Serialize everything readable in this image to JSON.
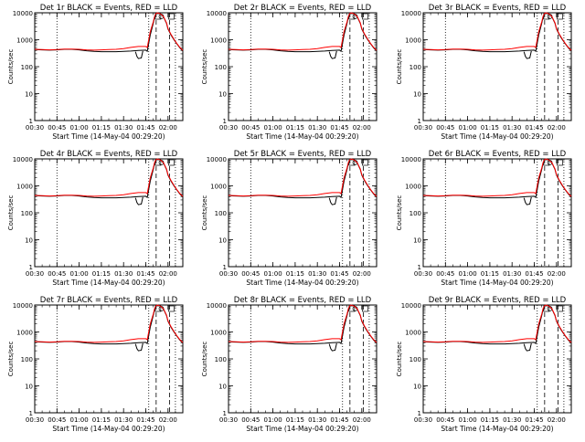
{
  "chart_data": [
    {
      "type": "line",
      "title": "Det 1r BLACK = Events, RED = LLD",
      "detector": "1r"
    },
    {
      "type": "line",
      "title": "Det 2r BLACK = Events, RED = LLD",
      "detector": "2r"
    },
    {
      "type": "line",
      "title": "Det 3r BLACK = Events, RED = LLD",
      "detector": "3r"
    },
    {
      "type": "line",
      "title": "Det 4r BLACK = Events, RED = LLD",
      "detector": "4r"
    },
    {
      "type": "line",
      "title": "Det 5r BLACK = Events, RED = LLD",
      "detector": "5r"
    },
    {
      "type": "line",
      "title": "Det 6r BLACK = Events, RED = LLD",
      "detector": "6r"
    },
    {
      "type": "line",
      "title": "Det 7r BLACK = Events, RED = LLD",
      "detector": "7r"
    },
    {
      "type": "line",
      "title": "Det 8r BLACK = Events, RED = LLD",
      "detector": "8r"
    },
    {
      "type": "line",
      "title": "Det 9r BLACK = Events, RED = LLD",
      "detector": "9r"
    }
  ],
  "shared": {
    "xlabel": "Start Time (14-May-04 00:29:20)",
    "ylabel": "Counts/sec",
    "y_scale": "log",
    "ylim": [
      1,
      10000
    ],
    "xlim": [
      "00:30",
      "02:10"
    ],
    "x_tick_labels": [
      "00:30",
      "00:45",
      "01:00",
      "01:15",
      "01:30",
      "01:45",
      "02:00"
    ],
    "y_tick_labels": [
      "1",
      "10",
      "100",
      "1000",
      "10000"
    ],
    "series_colors": {
      "events": "#000000",
      "lld": "#ff0000"
    },
    "dotted_markers": [
      "00:45",
      "01:47",
      "02:05"
    ],
    "dashed_markers": [
      "01:52",
      "02:01"
    ],
    "x_minutes": [
      0,
      5,
      10,
      15,
      20,
      25,
      30,
      35,
      40,
      45,
      50,
      55,
      60,
      65,
      70,
      75,
      76,
      78,
      80,
      81,
      82,
      83,
      85,
      87,
      89,
      90,
      92,
      94,
      96,
      98,
      100
    ],
    "events_values": [
      430,
      420,
      410,
      420,
      440,
      440,
      420,
      390,
      370,
      360,
      360,
      360,
      370,
      380,
      400,
      410,
      370,
      1500,
      4000,
      7000,
      9500,
      10000,
      9000,
      7000,
      4000,
      2500,
      1500,
      1000,
      700,
      500,
      380
    ],
    "lld_values": [
      440,
      430,
      420,
      430,
      450,
      450,
      440,
      420,
      410,
      420,
      430,
      440,
      470,
      520,
      560,
      560,
      520,
      2000,
      4500,
      7500,
      9500,
      10000,
      9000,
      7200,
      4200,
      2600,
      1600,
      1050,
      720,
      520,
      400
    ],
    "events_dip_x": [
      68,
      69,
      70,
      72,
      73
    ],
    "events_dip_values": [
      360,
      240,
      200,
      210,
      380
    ]
  }
}
